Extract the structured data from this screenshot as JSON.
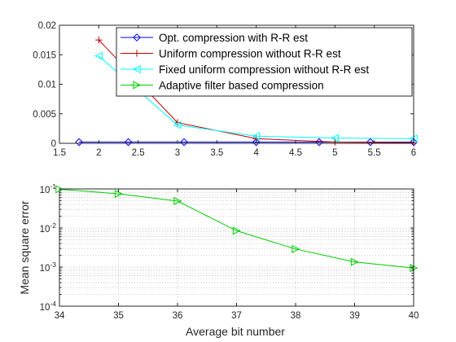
{
  "chart_data": [
    {
      "type": "line",
      "title": "",
      "xlabel": "",
      "ylabel": "",
      "xlim": [
        1.5,
        6
      ],
      "ylim": [
        0,
        0.02
      ],
      "xticks": [
        1.5,
        2,
        2.5,
        3,
        3.5,
        4,
        4.5,
        5,
        5.5,
        6
      ],
      "xtick_labels": [
        "1.5",
        "2",
        "2.5",
        "3",
        "3.5",
        "4",
        "4.5",
        "5",
        "5.5",
        "6"
      ],
      "yticks": [
        0,
        0.005,
        0.01,
        0.015,
        0.02
      ],
      "ytick_labels": [
        "0",
        "0.005",
        "0.01",
        "0.015",
        "0.02"
      ],
      "grid": false,
      "legend_position": "top-right",
      "series": [
        {
          "name": "Opt. compression with R-R est",
          "color": "#0000ff",
          "marker": "diamond",
          "x": [
            1.75,
            2.375,
            3.083,
            4.0,
            4.8,
            5.45,
            6.0
          ],
          "y": [
            0.0002,
            0.0002,
            0.0002,
            0.0002,
            0.0002,
            0.0002,
            0.0002
          ]
        },
        {
          "name": "Uniform compression without R-R est",
          "color": "#c00000",
          "marker": "plus",
          "x": [
            2,
            3,
            4,
            5,
            6
          ],
          "y": [
            0.0175,
            0.0035,
            0.0008,
            0.0002,
            0.0001
          ]
        },
        {
          "name": "Fixed uniform compression without R-R est",
          "color": "#00ffff",
          "marker": "triangle-left",
          "x": [
            2,
            3,
            4,
            5,
            6
          ],
          "y": [
            0.0148,
            0.0031,
            0.0012,
            0.0009,
            0.0008
          ]
        },
        {
          "name": "Adaptive filter based compression",
          "color": "#00cc00",
          "marker": "triangle-right",
          "x": [],
          "y": []
        }
      ]
    },
    {
      "type": "line",
      "title": "",
      "xlabel": "Average bit number",
      "ylabel": "Mean square error",
      "xlim": [
        34,
        40
      ],
      "ylim": [
        0.0001,
        0.1
      ],
      "yscale": "log",
      "xticks": [
        34,
        35,
        36,
        37,
        38,
        39,
        40
      ],
      "xtick_labels": [
        "34",
        "35",
        "36",
        "37",
        "38",
        "39",
        "40"
      ],
      "ytick_labels": [
        {
          "base": "10",
          "exp": "-4",
          "value": 0.0001
        },
        {
          "base": "10",
          "exp": "-3",
          "value": 0.001
        },
        {
          "base": "10",
          "exp": "-2",
          "value": 0.01
        },
        {
          "base": "10",
          "exp": "-1",
          "value": 0.1
        }
      ],
      "grid": true,
      "series": [
        {
          "color": "#00cc00",
          "marker": "triangle-right",
          "x": [
            34,
            35,
            36,
            37,
            38,
            39,
            40
          ],
          "y": [
            0.098,
            0.075,
            0.049,
            0.0085,
            0.0029,
            0.00135,
            0.00095
          ]
        }
      ]
    }
  ]
}
